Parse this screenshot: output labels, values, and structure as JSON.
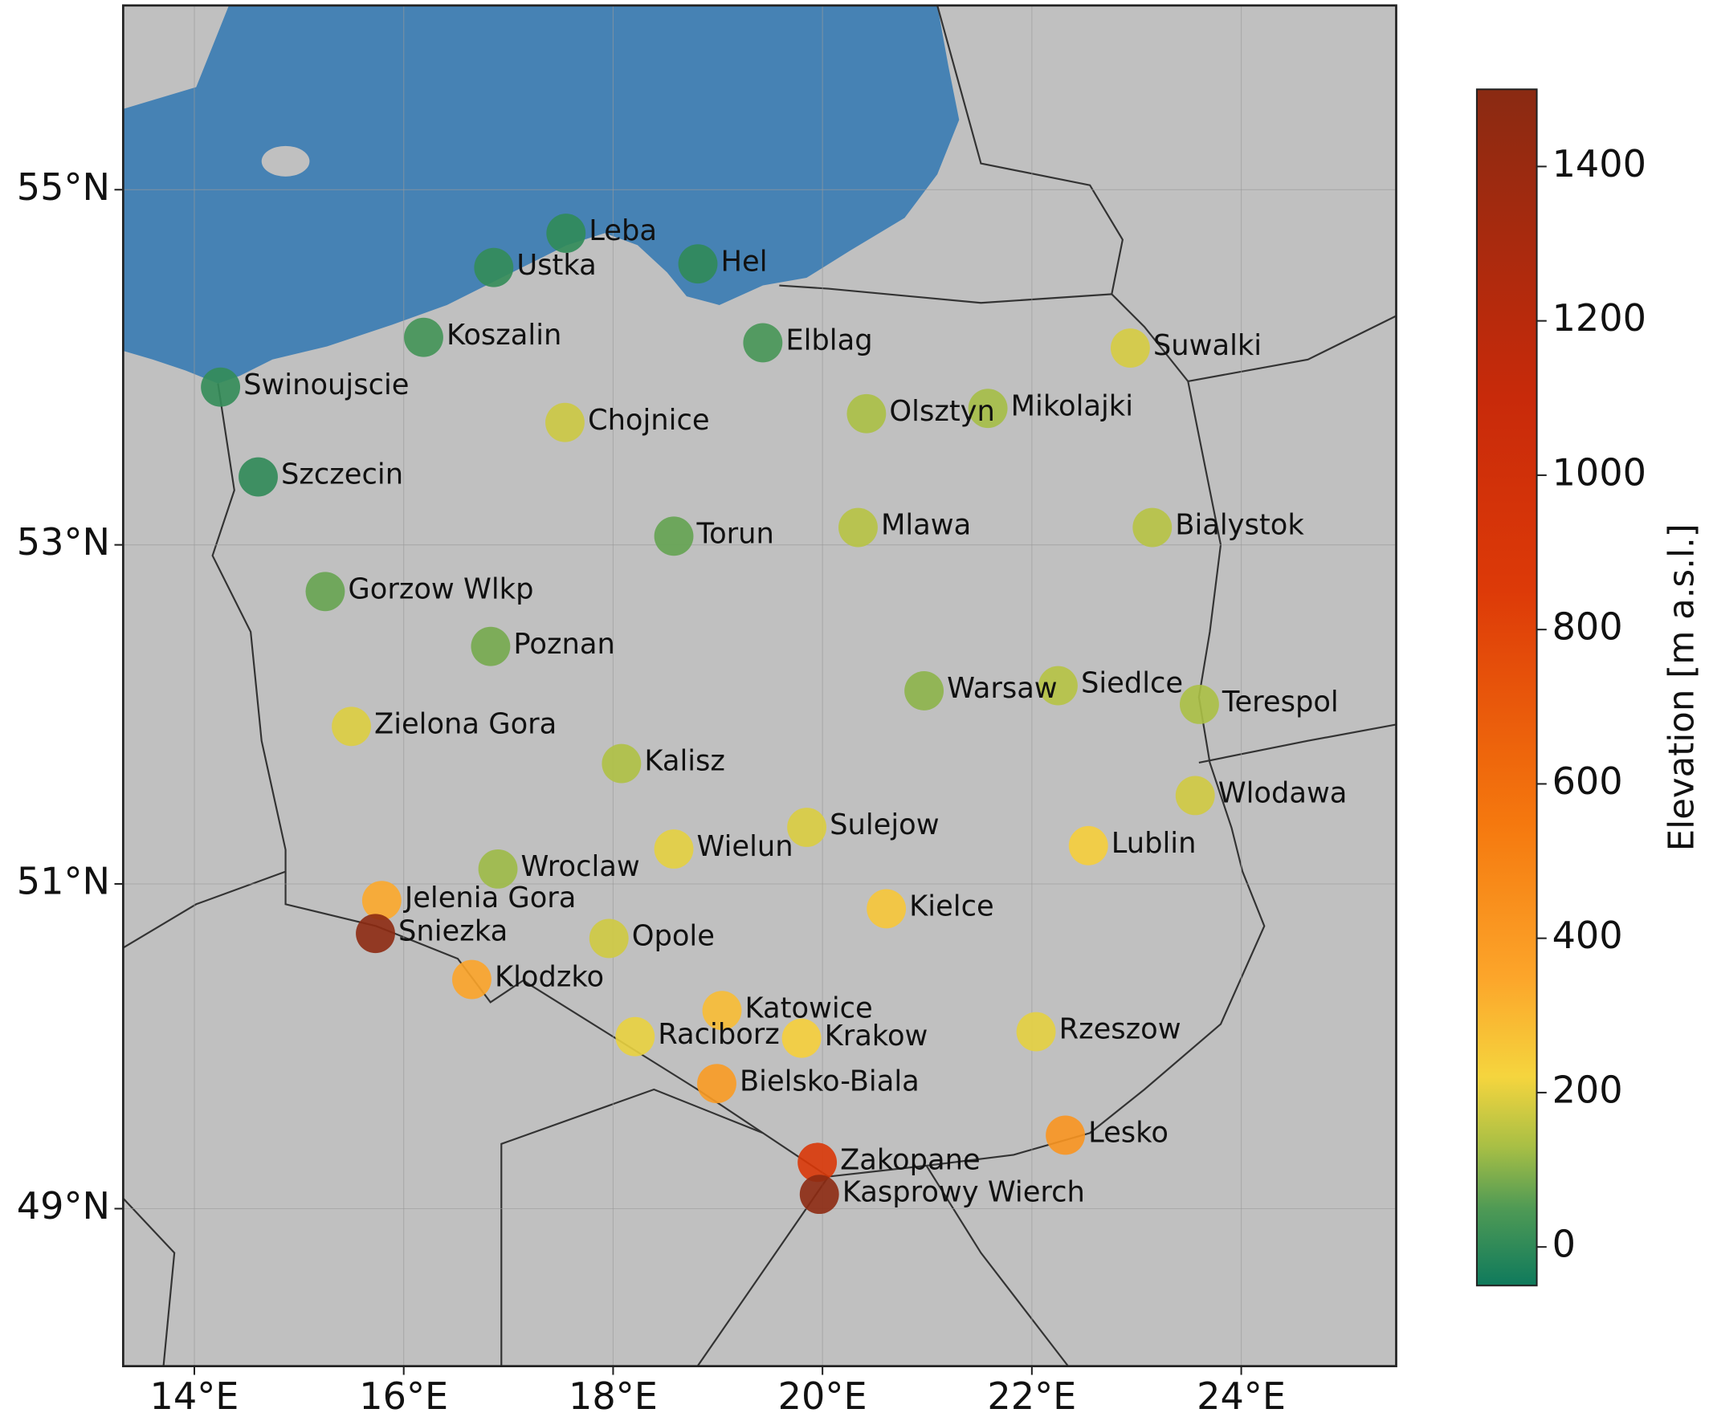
{
  "chart_data": {
    "type": "scatter",
    "xlim": [
      13.32,
      25.48
    ],
    "ylim": [
      48.0,
      56.0
    ],
    "xticks": [
      {
        "value": 14,
        "label": "14°E"
      },
      {
        "value": 16,
        "label": "16°E"
      },
      {
        "value": 18,
        "label": "18°E"
      },
      {
        "value": 20,
        "label": "20°E"
      },
      {
        "value": 22,
        "label": "22°E"
      },
      {
        "value": 24,
        "label": "24°E"
      }
    ],
    "yticks": [
      {
        "value": 49,
        "label": "49°N"
      },
      {
        "value": 51,
        "label": "51°N"
      },
      {
        "value": 53,
        "label": "53°N"
      },
      {
        "value": 55,
        "label": "55°N"
      }
    ],
    "grid": true,
    "names": [
      "Leba",
      "Ustka",
      "Hel",
      "Koszalin",
      "Elblag",
      "Suwalki",
      "Swinoujscie",
      "Chojnice",
      "Olsztyn",
      "Mikolajki",
      "Szczecin",
      "Torun",
      "Mlawa",
      "Bialystok",
      "Gorzow Wlkp",
      "Poznan",
      "Warsaw",
      "Siedlce",
      "Terespol",
      "Zielona Gora",
      "Kalisz",
      "Wlodawa",
      "Sulejow",
      "Wielun",
      "Lublin",
      "Wroclaw",
      "Jelenia Gora",
      "Sniezka",
      "Kielce",
      "Opole",
      "Klodzko",
      "Katowice",
      "Raciborz",
      "Krakow",
      "Rzeszow",
      "Bielsko-Biala",
      "Lesko",
      "Zakopane",
      "Kasprowy Wierch"
    ],
    "x": [
      17.55,
      16.86,
      18.81,
      16.19,
      19.43,
      22.94,
      14.25,
      17.54,
      20.42,
      21.58,
      14.61,
      18.58,
      20.34,
      23.15,
      15.25,
      16.83,
      20.97,
      22.25,
      23.6,
      15.5,
      18.08,
      23.56,
      19.85,
      18.58,
      22.54,
      16.9,
      15.79,
      15.73,
      20.61,
      17.96,
      16.65,
      19.04,
      18.21,
      19.8,
      22.04,
      18.99,
      22.32,
      19.95,
      19.97
    ],
    "y": [
      54.76,
      54.57,
      54.59,
      54.18,
      54.15,
      54.12,
      53.9,
      53.7,
      53.75,
      53.78,
      53.39,
      53.05,
      53.1,
      53.1,
      52.73,
      52.41,
      52.15,
      52.18,
      52.07,
      51.94,
      51.72,
      51.53,
      51.34,
      51.21,
      51.23,
      51.09,
      50.9,
      50.7,
      50.85,
      50.67,
      50.42,
      50.23,
      50.07,
      50.06,
      50.1,
      49.78,
      49.46,
      49.29,
      49.09
    ],
    "values": [
      2,
      6,
      1,
      32,
      38,
      184,
      6,
      172,
      133,
      127,
      1,
      69,
      147,
      148,
      72,
      84,
      106,
      146,
      133,
      192,
      138,
      177,
      188,
      200,
      238,
      120,
      342,
      1480,
      260,
      176,
      356,
      284,
      206,
      237,
      200,
      396,
      420,
      900,
      1480
    ],
    "colorbar": {
      "label": "Elevation [m a.s.l.]",
      "lim": [
        -50,
        1500
      ],
      "ticks": [
        0,
        200,
        400,
        600,
        800,
        1000,
        1200,
        1400
      ],
      "colorscale": [
        [
          -50,
          "#0f7a5c"
        ],
        [
          50,
          "#4f9a55"
        ],
        [
          130,
          "#a8bf45"
        ],
        [
          220,
          "#f5d53e"
        ],
        [
          350,
          "#fca52a"
        ],
        [
          550,
          "#f5780e"
        ],
        [
          850,
          "#dd3a08"
        ],
        [
          1100,
          "#c82a0a"
        ],
        [
          1500,
          "#8a2a12"
        ]
      ]
    }
  }
}
